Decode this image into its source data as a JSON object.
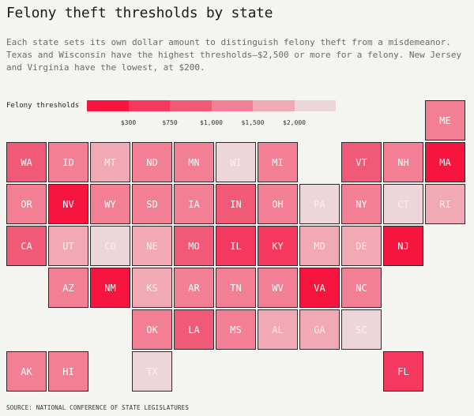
{
  "title": "Felony theft thresholds by state",
  "description": "Each state sets its own dollar amount to distinguish felony theft from a misdemeanor. Texas and Wisconsin have the highest thresholds—$2,500 or more for a felony. New Jersey and Virginia have the lowest, at $200.",
  "source": "SOURCE: NATIONAL CONFERENCE OF STATE LEGISLATURES",
  "chart_data": {
    "type": "heatmap",
    "title": "Felony theft thresholds by state",
    "legend": {
      "label": "Felony thresholds",
      "ticks": [
        "$300",
        "$750",
        "$1,000",
        "$1,500",
        "$2,000"
      ],
      "colors": [
        "#f5153f",
        "#f5385d",
        "#f15a77",
        "#f27f93",
        "#f2a9b6",
        "#ecd6da"
      ]
    },
    "tiles": [
      {
        "state": "ME",
        "col": 10,
        "row": 0,
        "color": "#f27f93"
      },
      {
        "state": "WA",
        "col": 0,
        "row": 1,
        "color": "#f15a77"
      },
      {
        "state": "ID",
        "col": 1,
        "row": 1,
        "color": "#f27f93"
      },
      {
        "state": "MT",
        "col": 2,
        "row": 1,
        "color": "#f2a9b6"
      },
      {
        "state": "ND",
        "col": 3,
        "row": 1,
        "color": "#f27f93"
      },
      {
        "state": "MN",
        "col": 4,
        "row": 1,
        "color": "#f27f93"
      },
      {
        "state": "WI",
        "col": 5,
        "row": 1,
        "color": "#ecd6da"
      },
      {
        "state": "MI",
        "col": 6,
        "row": 1,
        "color": "#f27f93"
      },
      {
        "state": "VT",
        "col": 8,
        "row": 1,
        "color": "#f15a77"
      },
      {
        "state": "NH",
        "col": 9,
        "row": 1,
        "color": "#f27f93"
      },
      {
        "state": "MA",
        "col": 10,
        "row": 1,
        "color": "#f5153f"
      },
      {
        "state": "OR",
        "col": 0,
        "row": 2,
        "color": "#f27f93"
      },
      {
        "state": "NV",
        "col": 1,
        "row": 2,
        "color": "#f5153f"
      },
      {
        "state": "WY",
        "col": 2,
        "row": 2,
        "color": "#f27f93"
      },
      {
        "state": "SD",
        "col": 3,
        "row": 2,
        "color": "#f27f93"
      },
      {
        "state": "IA",
        "col": 4,
        "row": 2,
        "color": "#f27f93"
      },
      {
        "state": "IN",
        "col": 5,
        "row": 2,
        "color": "#f15a77"
      },
      {
        "state": "OH",
        "col": 6,
        "row": 2,
        "color": "#f27f93"
      },
      {
        "state": "PA",
        "col": 7,
        "row": 2,
        "color": "#ecd6da"
      },
      {
        "state": "NY",
        "col": 8,
        "row": 2,
        "color": "#f27f93"
      },
      {
        "state": "CT",
        "col": 9,
        "row": 2,
        "color": "#ecd6da"
      },
      {
        "state": "RI",
        "col": 10,
        "row": 2,
        "color": "#f2a9b6"
      },
      {
        "state": "CA",
        "col": 0,
        "row": 3,
        "color": "#f15a77"
      },
      {
        "state": "UT",
        "col": 1,
        "row": 3,
        "color": "#f2a9b6"
      },
      {
        "state": "CO",
        "col": 2,
        "row": 3,
        "color": "#ecd6da"
      },
      {
        "state": "NE",
        "col": 3,
        "row": 3,
        "color": "#f2a9b6"
      },
      {
        "state": "MO",
        "col": 4,
        "row": 3,
        "color": "#f15a77"
      },
      {
        "state": "IL",
        "col": 5,
        "row": 3,
        "color": "#f5385d"
      },
      {
        "state": "KY",
        "col": 6,
        "row": 3,
        "color": "#f5385d"
      },
      {
        "state": "MD",
        "col": 7,
        "row": 3,
        "color": "#f2a9b6"
      },
      {
        "state": "DE",
        "col": 8,
        "row": 3,
        "color": "#f2a9b6"
      },
      {
        "state": "NJ",
        "col": 9,
        "row": 3,
        "color": "#f5153f"
      },
      {
        "state": "AZ",
        "col": 1,
        "row": 4,
        "color": "#f27f93"
      },
      {
        "state": "NM",
        "col": 2,
        "row": 4,
        "color": "#f5153f"
      },
      {
        "state": "KS",
        "col": 3,
        "row": 4,
        "color": "#f2a9b6"
      },
      {
        "state": "AR",
        "col": 4,
        "row": 4,
        "color": "#f27f93"
      },
      {
        "state": "TN",
        "col": 5,
        "row": 4,
        "color": "#f27f93"
      },
      {
        "state": "WV",
        "col": 6,
        "row": 4,
        "color": "#f27f93"
      },
      {
        "state": "VA",
        "col": 7,
        "row": 4,
        "color": "#f5153f"
      },
      {
        "state": "NC",
        "col": 8,
        "row": 4,
        "color": "#f27f93"
      },
      {
        "state": "OK",
        "col": 3,
        "row": 5,
        "color": "#f27f93"
      },
      {
        "state": "LA",
        "col": 4,
        "row": 5,
        "color": "#f15a77"
      },
      {
        "state": "MS",
        "col": 5,
        "row": 5,
        "color": "#f27f93"
      },
      {
        "state": "AL",
        "col": 6,
        "row": 5,
        "color": "#f2a9b6"
      },
      {
        "state": "GA",
        "col": 7,
        "row": 5,
        "color": "#f2a9b6"
      },
      {
        "state": "SC",
        "col": 8,
        "row": 5,
        "color": "#ecd6da"
      },
      {
        "state": "AK",
        "col": 0,
        "row": 6,
        "color": "#f27f93"
      },
      {
        "state": "HI",
        "col": 1,
        "row": 6,
        "color": "#f27f93"
      },
      {
        "state": "TX",
        "col": 3,
        "row": 6,
        "color": "#ecd6da"
      },
      {
        "state": "FL",
        "col": 9,
        "row": 6,
        "color": "#f5385d"
      }
    ]
  }
}
